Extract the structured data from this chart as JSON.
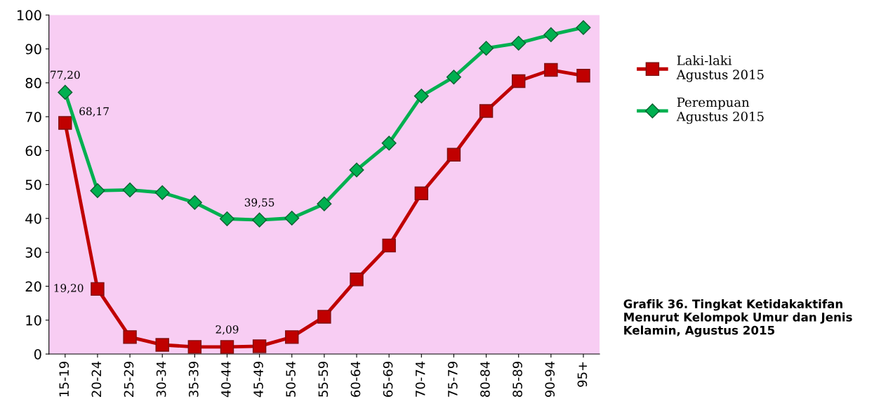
{
  "chart_data": {
    "type": "line",
    "title": "Grafik 36. Tingkat Ketidakaktifan Menurut Kelompok Umur dan Jenis Kelamin, Agustus 2015",
    "categories": [
      "15-19",
      "20-24",
      "25-29",
      "30-34",
      "35-39",
      "40-44",
      "45-49",
      "50-54",
      "55-59",
      "60-64",
      "65-69",
      "70-74",
      "75-79",
      "80-84",
      "85-89",
      "90-94",
      "95+"
    ],
    "series": [
      {
        "name": "Laki-laki\nAgustus 2015",
        "color": "#c00000",
        "marker": "square",
        "values": [
          68.17,
          19.2,
          5.0,
          2.7,
          2.1,
          2.09,
          2.3,
          5.0,
          11.0,
          22.0,
          32.0,
          47.4,
          58.8,
          71.7,
          80.5,
          83.8,
          82.1
        ],
        "value_labels": [
          "68,17",
          "19,20",
          null,
          null,
          null,
          "2,09",
          null,
          null,
          null,
          null,
          null,
          null,
          null,
          null,
          null,
          null,
          null
        ]
      },
      {
        "name": "Perempuan\nAgustus 2015",
        "color": "#00b050",
        "marker": "diamond",
        "values": [
          77.2,
          48.2,
          48.4,
          47.6,
          44.7,
          39.9,
          39.55,
          40.1,
          44.3,
          54.3,
          62.2,
          76.1,
          81.7,
          90.2,
          91.7,
          94.2,
          96.3
        ],
        "value_labels": [
          "77,20",
          null,
          null,
          null,
          null,
          null,
          "39,55",
          null,
          null,
          null,
          null,
          null,
          null,
          null,
          null,
          null,
          null
        ]
      }
    ],
    "ylim": [
      0,
      100
    ],
    "yticks": [
      0,
      10,
      20,
      30,
      40,
      50,
      60,
      70,
      80,
      90,
      100
    ],
    "grid": false,
    "legend": "right",
    "line_style": "solid"
  }
}
